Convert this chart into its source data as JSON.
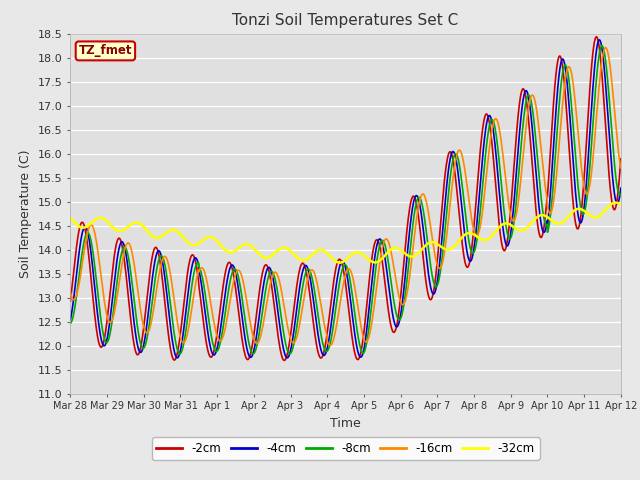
{
  "title": "Tonzi Soil Temperatures Set C",
  "xlabel": "Time",
  "ylabel": "Soil Temperature (C)",
  "ylim": [
    11.0,
    18.5
  ],
  "yticks": [
    11.0,
    11.5,
    12.0,
    12.5,
    13.0,
    13.5,
    14.0,
    14.5,
    15.0,
    15.5,
    16.0,
    16.5,
    17.0,
    17.5,
    18.0,
    18.5
  ],
  "xtick_labels": [
    "Mar 28",
    "Mar 29",
    "Mar 30",
    "Mar 31",
    "Apr 1",
    "Apr 2",
    "Apr 3",
    "Apr 4",
    "Apr 5",
    "Apr 6",
    "Apr 7",
    "Apr 8",
    "Apr 9",
    "Apr 10",
    "Apr 11",
    "Apr 12"
  ],
  "fig_bg_color": "#e8e8e8",
  "plot_bg_color": "#e0e0e0",
  "legend_label": "TZ_fmet",
  "legend_bg": "#ffffcc",
  "legend_border": "#cc0000",
  "grid_color": "#ffffff",
  "series": [
    {
      "label": "-2cm",
      "color": "#cc0000",
      "lw": 1.2
    },
    {
      "label": "-4cm",
      "color": "#0000cc",
      "lw": 1.2
    },
    {
      "label": "-8cm",
      "color": "#00aa00",
      "lw": 1.2
    },
    {
      "label": "-16cm",
      "color": "#ff8800",
      "lw": 1.2
    },
    {
      "label": "-32cm",
      "color": "#ffff00",
      "lw": 1.8
    }
  ]
}
